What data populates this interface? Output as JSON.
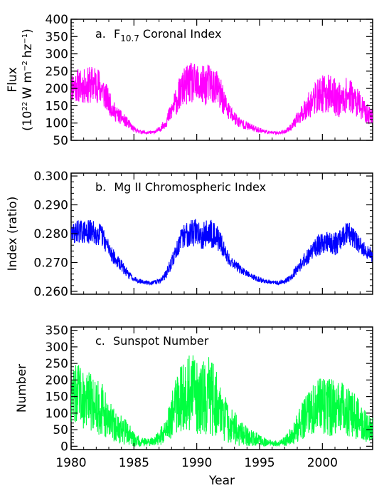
{
  "xlabel": "Year",
  "x_ticks": [
    "1980",
    "1985",
    "1990",
    "1995",
    "2000"
  ],
  "chart_data": [
    {
      "type": "line",
      "panel_label": "a.",
      "title_main": "F",
      "title_sub": "10.7",
      "title_rest": "Coronal Index",
      "ylabel_line1": "Flux",
      "ylabel_line2_pre": "(10",
      "ylabel_exp1": "22",
      "ylabel_mid1": "W m",
      "ylabel_exp2": "−2",
      "ylabel_mid2": "hz",
      "ylabel_exp3": "−1",
      "ylabel_post": ")",
      "xlim": [
        1980,
        2004
      ],
      "ylim": [
        50,
        400
      ],
      "y_ticks": [
        "50",
        "100",
        "150",
        "200",
        "250",
        "300",
        "350",
        "400"
      ],
      "color": "#ff00ff",
      "series": [
        {
          "x": [
            1980,
            1980.5,
            1981,
            1981.5,
            1982,
            1982.5,
            1983,
            1983.5,
            1984,
            1984.5,
            1985,
            1985.5,
            1986,
            1986.5,
            1987,
            1987.5,
            1988,
            1988.5,
            1989,
            1989.5,
            1990,
            1990.5,
            1991,
            1991.5,
            1992,
            1992.5,
            1993,
            1993.5,
            1994,
            1994.5,
            1995,
            1995.5,
            1996,
            1996.5,
            1997,
            1997.5,
            1998,
            1998.5,
            1999,
            1999.5,
            2000,
            2000.5,
            2001,
            2001.5,
            2002,
            2002.5,
            2003,
            2003.5,
            2004
          ],
          "y": [
            205,
            210,
            205,
            210,
            215,
            195,
            160,
            130,
            115,
            100,
            82,
            75,
            72,
            73,
            80,
            100,
            135,
            175,
            205,
            215,
            210,
            205,
            215,
            205,
            175,
            135,
            115,
            100,
            92,
            85,
            80,
            75,
            72,
            72,
            75,
            88,
            110,
            135,
            155,
            175,
            185,
            185,
            175,
            165,
            185,
            170,
            150,
            128,
            120
          ],
          "amp": [
            45,
            50,
            50,
            55,
            55,
            50,
            35,
            25,
            20,
            15,
            8,
            5,
            4,
            4,
            7,
            15,
            30,
            45,
            55,
            60,
            60,
            60,
            60,
            55,
            45,
            30,
            22,
            15,
            12,
            10,
            8,
            5,
            4,
            4,
            6,
            10,
            20,
            30,
            40,
            50,
            55,
            55,
            55,
            50,
            50,
            45,
            40,
            30,
            25
          ]
        }
      ]
    },
    {
      "type": "line",
      "panel_label": "b.",
      "title": "Mg II Chromospheric Index",
      "ylabel": "Index (ratio)",
      "xlim": [
        1980,
        2004
      ],
      "ylim": [
        0.259,
        0.301
      ],
      "y_ticks": [
        "0.260",
        "0.270",
        "0.280",
        "0.290",
        "0.300"
      ],
      "color": "#0000ff",
      "series": [
        {
          "x": [
            1980,
            1980.5,
            1981,
            1981.5,
            1982,
            1982.5,
            1983,
            1983.5,
            1984,
            1984.5,
            1985,
            1985.5,
            1986,
            1986.5,
            1987,
            1987.5,
            1988,
            1988.5,
            1989,
            1989.5,
            1990,
            1990.5,
            1991,
            1991.5,
            1992,
            1992.5,
            1993,
            1993.5,
            1994,
            1994.5,
            1995,
            1995.5,
            1996,
            1996.5,
            1997,
            1997.5,
            1998,
            1998.5,
            1999,
            1999.5,
            2000,
            2000.5,
            2001,
            2001.5,
            2002,
            2002.5,
            2003,
            2003.5,
            2004
          ],
          "y": [
            0.2795,
            0.281,
            0.2805,
            0.2805,
            0.2805,
            0.279,
            0.275,
            0.271,
            0.269,
            0.266,
            0.2645,
            0.2635,
            0.263,
            0.263,
            0.2635,
            0.2655,
            0.27,
            0.2755,
            0.2795,
            0.2805,
            0.2805,
            0.2795,
            0.2805,
            0.2795,
            0.276,
            0.2715,
            0.2695,
            0.2675,
            0.266,
            0.265,
            0.264,
            0.2635,
            0.263,
            0.263,
            0.2635,
            0.265,
            0.268,
            0.2705,
            0.273,
            0.2755,
            0.2765,
            0.2775,
            0.2765,
            0.2775,
            0.2805,
            0.2785,
            0.276,
            0.2735,
            0.2725
          ],
          "amp": [
            0.0035,
            0.004,
            0.004,
            0.0045,
            0.0045,
            0.004,
            0.003,
            0.0025,
            0.002,
            0.0015,
            0.001,
            0.0008,
            0.0007,
            0.0007,
            0.0008,
            0.0015,
            0.0025,
            0.0035,
            0.0045,
            0.005,
            0.005,
            0.005,
            0.005,
            0.0045,
            0.0035,
            0.0025,
            0.002,
            0.0015,
            0.0012,
            0.001,
            0.001,
            0.0008,
            0.0007,
            0.0007,
            0.0008,
            0.0012,
            0.002,
            0.0025,
            0.003,
            0.0035,
            0.004,
            0.004,
            0.004,
            0.004,
            0.004,
            0.0035,
            0.003,
            0.0025,
            0.0025
          ]
        }
      ]
    },
    {
      "type": "line",
      "panel_label": "c.",
      "title": "Sunspot Number",
      "ylabel": "Number",
      "xlim": [
        1980,
        2004
      ],
      "ylim": [
        -10,
        360
      ],
      "y_ticks": [
        "0",
        "50",
        "100",
        "150",
        "200",
        "250",
        "300",
        "350"
      ],
      "color": "#00ff40",
      "series": [
        {
          "x": [
            1980,
            1980.5,
            1981,
            1981.5,
            1982,
            1982.5,
            1983,
            1983.5,
            1984,
            1984.5,
            1985,
            1985.5,
            1986,
            1986.5,
            1987,
            1987.5,
            1988,
            1988.5,
            1989,
            1989.5,
            1990,
            1990.5,
            1991,
            1991.5,
            1992,
            1992.5,
            1993,
            1993.5,
            1994,
            1994.5,
            1995,
            1995.5,
            1996,
            1996.5,
            1997,
            1997.5,
            1998,
            1998.5,
            1999,
            1999.5,
            2000,
            2000.5,
            2001,
            2001.5,
            2002,
            2002.5,
            2003,
            2003.5,
            2004
          ],
          "y": [
            155,
            160,
            140,
            135,
            125,
            110,
            80,
            60,
            50,
            40,
            20,
            15,
            12,
            15,
            25,
            45,
            95,
            135,
            155,
            160,
            150,
            145,
            150,
            140,
            100,
            70,
            55,
            40,
            30,
            25,
            18,
            12,
            8,
            8,
            15,
            30,
            55,
            80,
            100,
            120,
            125,
            120,
            110,
            115,
            105,
            95,
            75,
            55,
            45
          ],
          "amp": [
            80,
            90,
            90,
            90,
            90,
            80,
            60,
            50,
            45,
            35,
            22,
            16,
            12,
            14,
            22,
            40,
            70,
            90,
            110,
            120,
            120,
            120,
            120,
            110,
            80,
            60,
            50,
            40,
            30,
            25,
            18,
            12,
            8,
            8,
            14,
            28,
            45,
            60,
            70,
            80,
            90,
            90,
            85,
            80,
            75,
            70,
            60,
            45,
            40
          ]
        }
      ]
    }
  ]
}
